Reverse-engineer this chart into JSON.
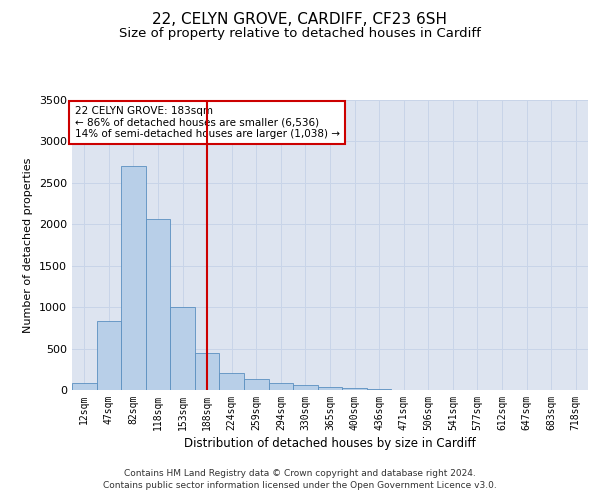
{
  "title_line1": "22, CELYN GROVE, CARDIFF, CF23 6SH",
  "title_line2": "Size of property relative to detached houses in Cardiff",
  "xlabel": "Distribution of detached houses by size in Cardiff",
  "ylabel": "Number of detached properties",
  "footer_line1": "Contains HM Land Registry data © Crown copyright and database right 2024.",
  "footer_line2": "Contains public sector information licensed under the Open Government Licence v3.0.",
  "annotation_line1": "22 CELYN GROVE: 183sqm",
  "annotation_line2": "← 86% of detached houses are smaller (6,536)",
  "annotation_line3": "14% of semi-detached houses are larger (1,038) →",
  "bar_labels": [
    "12sqm",
    "47sqm",
    "82sqm",
    "118sqm",
    "153sqm",
    "188sqm",
    "224sqm",
    "259sqm",
    "294sqm",
    "330sqm",
    "365sqm",
    "400sqm",
    "436sqm",
    "471sqm",
    "506sqm",
    "541sqm",
    "577sqm",
    "612sqm",
    "647sqm",
    "683sqm",
    "718sqm"
  ],
  "bar_values": [
    80,
    830,
    2700,
    2060,
    1000,
    450,
    200,
    130,
    80,
    60,
    40,
    20,
    10,
    5,
    2,
    1,
    1,
    0,
    0,
    0,
    0
  ],
  "bar_color": "#b8cfe8",
  "bar_edge_color": "#5a8fc0",
  "vline_x": 5,
  "vline_color": "#cc0000",
  "ylim": [
    0,
    3500
  ],
  "yticks": [
    0,
    500,
    1000,
    1500,
    2000,
    2500,
    3000,
    3500
  ],
  "grid_color": "#c8d4e8",
  "bg_color": "#dde4f0",
  "annotation_box_color": "#cc0000",
  "title_fontsize": 11,
  "subtitle_fontsize": 9.5
}
